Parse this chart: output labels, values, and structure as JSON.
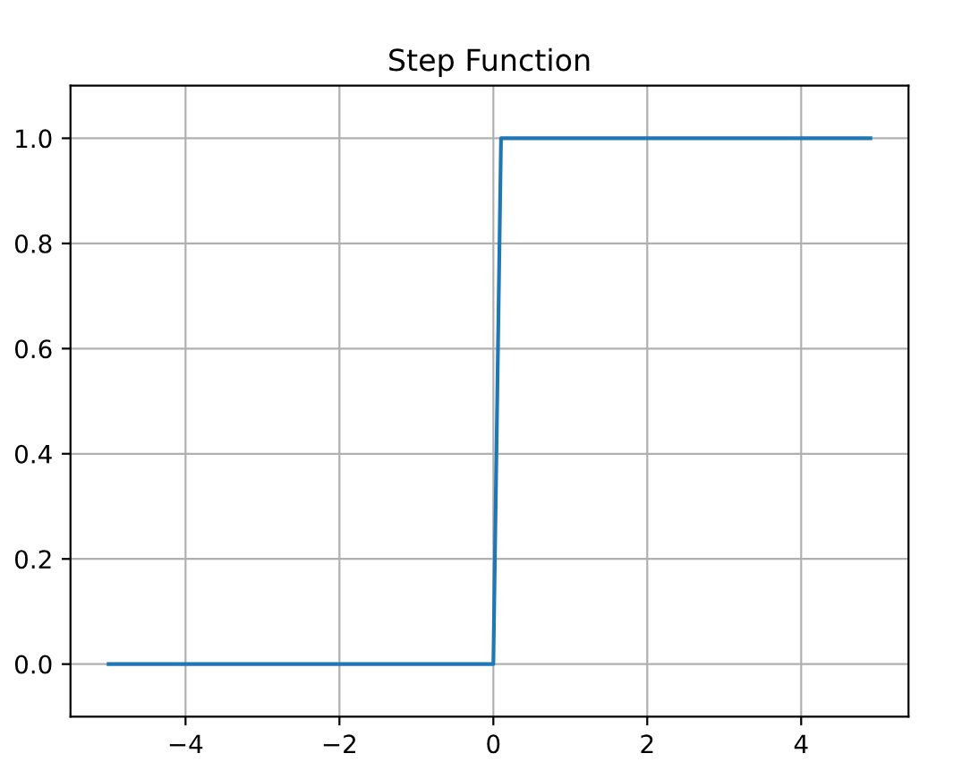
{
  "chart_data": {
    "type": "line",
    "title": "Step Function",
    "x": [
      -5.0,
      0.0,
      0.1,
      4.9
    ],
    "series": [
      {
        "color": "#1f77b4",
        "values": [
          0,
          0,
          1,
          1
        ]
      }
    ],
    "xlim": [
      -5.495,
      5.395
    ],
    "xticks": [
      {
        "value": -4,
        "label": "−4"
      },
      {
        "value": -2,
        "label": "−2"
      },
      0,
      2,
      4
    ],
    "ylim": [
      -0.1,
      1.1
    ],
    "yticks": [
      {
        "value": 0,
        "label": "0.0"
      },
      {
        "value": 0.2,
        "label": "0.2"
      },
      {
        "value": 0.4,
        "label": "0.4"
      },
      {
        "value": 0.6,
        "label": "0.6"
      },
      {
        "value": 0.8,
        "label": "0.8"
      },
      {
        "value": 1,
        "label": "1.0"
      }
    ],
    "grid": true
  }
}
